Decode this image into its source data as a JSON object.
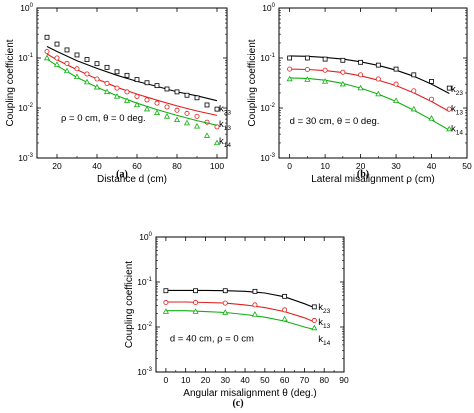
{
  "chart_data": [
    {
      "type": "line",
      "panel_label": "(a)",
      "xlabel": "Distance d (cm)",
      "ylabel": "Coupling coefficient",
      "xlim": [
        10,
        105
      ],
      "ylim": [
        0.001,
        1
      ],
      "yscale": "log",
      "x_ticks": [
        20,
        40,
        60,
        80,
        100
      ],
      "y_ticks": [
        0.001,
        0.01,
        0.1,
        1
      ],
      "y_tick_labels": [
        {
          "base": "10",
          "exp": "-3"
        },
        {
          "base": "10",
          "exp": "-2"
        },
        {
          "base": "10",
          "exp": "-1"
        },
        {
          "base": "10",
          "exp": "0"
        }
      ],
      "annotation": "ρ = 0 cm, θ = 0 deg.",
      "annotation_pos": [
        22,
        0.0055
      ],
      "series": [
        {
          "name": "k23",
          "base": "k",
          "subscript": "23",
          "color": "#000000",
          "marker": "square",
          "label_pos": [
            101,
            0.0085
          ],
          "points": {
            "x": [
              15,
              20,
              25,
              30,
              35,
              40,
              45,
              50,
              55,
              60,
              65,
              70,
              75,
              80,
              85,
              90,
              95,
              100
            ],
            "y": [
              0.26,
              0.19,
              0.145,
              0.115,
              0.093,
              0.077,
              0.065,
              0.053,
              0.045,
              0.037,
              0.032,
              0.028,
              0.024,
              0.021,
              0.018,
              0.016,
              0.0115,
              0.0095
            ]
          },
          "curve": {
            "x": [
              15,
              20,
              30,
              40,
              50,
              60,
              70,
              80,
              90,
              100
            ],
            "y": [
              0.17,
              0.135,
              0.088,
              0.062,
              0.045,
              0.034,
              0.027,
              0.021,
              0.0175,
              0.014
            ]
          }
        },
        {
          "name": "k13",
          "base": "k",
          "subscript": "13",
          "color": "#e02020",
          "marker": "circle",
          "label_pos": [
            101,
            0.0042
          ],
          "points": {
            "x": [
              15,
              20,
              25,
              30,
              35,
              40,
              45,
              50,
              55,
              60,
              65,
              70,
              75,
              80,
              85,
              90,
              95,
              100
            ],
            "y": [
              0.135,
              0.1,
              0.078,
              0.061,
              0.048,
              0.038,
              0.031,
              0.025,
              0.021,
              0.017,
              0.0145,
              0.0125,
              0.0105,
              0.009,
              0.0078,
              0.0068,
              0.0052,
              0.0042
            ]
          },
          "curve": {
            "x": [
              15,
              20,
              30,
              40,
              50,
              60,
              70,
              80,
              90,
              100
            ],
            "y": [
              0.12,
              0.092,
              0.058,
              0.038,
              0.026,
              0.019,
              0.0143,
              0.011,
              0.0087,
              0.0071
            ]
          }
        },
        {
          "name": "k14",
          "base": "k",
          "subscript": "14",
          "color": "#10b010",
          "marker": "triangle",
          "label_pos": [
            101,
            0.0019
          ],
          "points": {
            "x": [
              15,
              20,
              25,
              30,
              35,
              40,
              45,
              50,
              55,
              60,
              65,
              70,
              75,
              80,
              85,
              90,
              95,
              100
            ],
            "y": [
              0.1,
              0.074,
              0.055,
              0.042,
              0.033,
              0.026,
              0.021,
              0.017,
              0.014,
              0.0115,
              0.0095,
              0.008,
              0.0068,
              0.0058,
              0.005,
              0.0043,
              0.0028,
              0.002
            ]
          },
          "curve": {
            "x": [
              15,
              20,
              30,
              40,
              50,
              60,
              70,
              80,
              90,
              100
            ],
            "y": [
              0.095,
              0.07,
              0.041,
              0.026,
              0.0175,
              0.0125,
              0.0093,
              0.0071,
              0.0056,
              0.0045
            ]
          }
        }
      ]
    },
    {
      "type": "line",
      "panel_label": "(b)",
      "xlabel": "Lateral misalignment ρ (cm)",
      "ylabel": "Coupling coefficient",
      "xlim": [
        -3,
        50
      ],
      "ylim": [
        0.001,
        1
      ],
      "yscale": "log",
      "x_ticks": [
        0,
        10,
        20,
        30,
        40,
        50
      ],
      "y_ticks": [
        0.001,
        0.01,
        0.1,
        1
      ],
      "y_tick_labels": [
        {
          "base": "10",
          "exp": "-3"
        },
        {
          "base": "10",
          "exp": "-2"
        },
        {
          "base": "10",
          "exp": "-1"
        },
        {
          "base": "10",
          "exp": "0"
        }
      ],
      "annotation": "d = 30 cm, θ = 0 deg.",
      "annotation_pos": [
        0,
        0.0048
      ],
      "series": [
        {
          "name": "k23",
          "base": "k",
          "subscript": "23",
          "color": "#000000",
          "marker": "square",
          "label_pos": [
            45.5,
            0.021
          ],
          "points": {
            "x": [
              0,
              5,
              10,
              15,
              20,
              25,
              30,
              35,
              40,
              45
            ],
            "y": [
              0.1,
              0.1,
              0.095,
              0.09,
              0.082,
              0.072,
              0.06,
              0.046,
              0.034,
              0.025
            ]
          },
          "curve": {
            "x": [
              0,
              5,
              10,
              15,
              20,
              25,
              30,
              35,
              40,
              45
            ],
            "y": [
              0.11,
              0.108,
              0.103,
              0.095,
              0.084,
              0.071,
              0.057,
              0.043,
              0.03,
              0.0195
            ]
          }
        },
        {
          "name": "k13",
          "base": "k",
          "subscript": "13",
          "color": "#e02020",
          "marker": "circle",
          "label_pos": [
            45.5,
            0.0085
          ],
          "points": {
            "x": [
              0,
              5,
              10,
              15,
              20,
              25,
              30,
              35,
              40,
              45
            ],
            "y": [
              0.06,
              0.059,
              0.057,
              0.052,
              0.046,
              0.038,
              0.03,
              0.022,
              0.015,
              0.0095
            ]
          },
          "curve": {
            "x": [
              0,
              5,
              10,
              15,
              20,
              25,
              30,
              35,
              40,
              45
            ],
            "y": [
              0.06,
              0.059,
              0.056,
              0.051,
              0.044,
              0.036,
              0.028,
              0.02,
              0.0135,
              0.0085
            ]
          }
        },
        {
          "name": "k14",
          "base": "k",
          "subscript": "14",
          "color": "#10b010",
          "marker": "triangle",
          "label_pos": [
            45.5,
            0.0034
          ],
          "points": {
            "x": [
              0,
              5,
              10,
              15,
              20,
              25,
              30,
              35,
              40,
              45
            ],
            "y": [
              0.038,
              0.037,
              0.034,
              0.03,
              0.025,
              0.019,
              0.014,
              0.0095,
              0.0062,
              0.0038
            ]
          },
          "curve": {
            "x": [
              0,
              5,
              10,
              15,
              20,
              25,
              30,
              35,
              40,
              45
            ],
            "y": [
              0.04,
              0.039,
              0.036,
              0.031,
              0.025,
              0.019,
              0.0135,
              0.009,
              0.0058,
              0.0036
            ]
          }
        }
      ]
    },
    {
      "type": "line",
      "panel_label": "(c)",
      "xlabel": "Angular misalignment θ (deg.)",
      "ylabel": "Coupling coefficient",
      "xlim": [
        -5,
        90
      ],
      "ylim": [
        0.001,
        1
      ],
      "yscale": "log",
      "x_ticks": [
        0,
        10,
        20,
        30,
        40,
        50,
        60,
        70,
        80,
        90
      ],
      "y_ticks": [
        0.001,
        0.01,
        0.1,
        1
      ],
      "y_tick_labels": [
        {
          "base": "10",
          "exp": "-3"
        },
        {
          "base": "10",
          "exp": "-2"
        },
        {
          "base": "10",
          "exp": "-1"
        },
        {
          "base": "10",
          "exp": "0"
        }
      ],
      "annotation": "d = 40 cm, ρ = 0 cm",
      "annotation_pos": [
        2,
        0.0048
      ],
      "series": [
        {
          "name": "k23",
          "base": "k",
          "subscript": "23",
          "color": "#000000",
          "marker": "square",
          "label_pos": [
            77,
            0.024
          ],
          "points": {
            "x": [
              0,
              15,
              30,
              45,
              60,
              75
            ],
            "y": [
              0.064,
              0.064,
              0.064,
              0.062,
              0.048,
              0.028
            ]
          },
          "curve": {
            "x": [
              0,
              10,
              20,
              30,
              40,
              50,
              60,
              70,
              75
            ],
            "y": [
              0.065,
              0.065,
              0.065,
              0.064,
              0.062,
              0.057,
              0.047,
              0.033,
              0.027
            ]
          }
        },
        {
          "name": "k13",
          "base": "k",
          "subscript": "13",
          "color": "#e02020",
          "marker": "circle",
          "label_pos": [
            77,
            0.011
          ],
          "points": {
            "x": [
              0,
              15,
              30,
              45,
              60,
              75
            ],
            "y": [
              0.035,
              0.035,
              0.034,
              0.031,
              0.024,
              0.014
            ]
          },
          "curve": {
            "x": [
              0,
              10,
              20,
              30,
              40,
              50,
              60,
              70,
              75
            ],
            "y": [
              0.036,
              0.036,
              0.035,
              0.034,
              0.031,
              0.027,
              0.022,
              0.016,
              0.013
            ]
          }
        },
        {
          "name": "k14",
          "base": "k",
          "subscript": "14",
          "color": "#10b010",
          "marker": "triangle",
          "label_pos": [
            77,
            0.0047
          ],
          "points": {
            "x": [
              0,
              15,
              30,
              45,
              60,
              75
            ],
            "y": [
              0.022,
              0.022,
              0.021,
              0.019,
              0.015,
              0.0095
            ]
          },
          "curve": {
            "x": [
              0,
              10,
              20,
              30,
              40,
              50,
              60,
              70,
              75
            ],
            "y": [
              0.023,
              0.023,
              0.022,
              0.021,
              0.019,
              0.0165,
              0.0135,
              0.01,
              0.0088
            ]
          }
        }
      ]
    }
  ]
}
